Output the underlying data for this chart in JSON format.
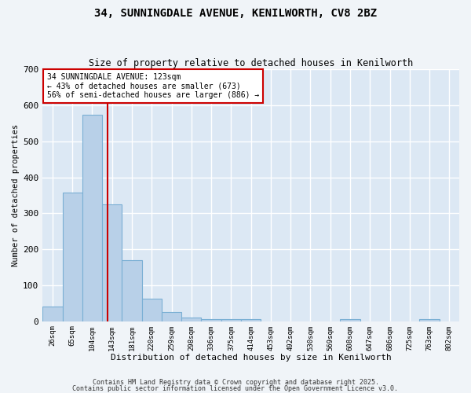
{
  "title1": "34, SUNNINGDALE AVENUE, KENILWORTH, CV8 2BZ",
  "title2": "Size of property relative to detached houses in Kenilworth",
  "xlabel": "Distribution of detached houses by size in Kenilworth",
  "ylabel": "Number of detached properties",
  "bin_labels": [
    "26sqm",
    "65sqm",
    "104sqm",
    "143sqm",
    "181sqm",
    "220sqm",
    "259sqm",
    "298sqm",
    "336sqm",
    "375sqm",
    "414sqm",
    "453sqm",
    "492sqm",
    "530sqm",
    "569sqm",
    "608sqm",
    "647sqm",
    "686sqm",
    "725sqm",
    "763sqm",
    "802sqm"
  ],
  "bar_heights": [
    40,
    358,
    573,
    325,
    170,
    63,
    25,
    10,
    5,
    5,
    5,
    0,
    0,
    0,
    0,
    5,
    0,
    0,
    0,
    5,
    0
  ],
  "bar_color": "#b8d0e8",
  "bar_edge_color": "#7aafd4",
  "background_color": "#dce8f4",
  "grid_color": "#ffffff",
  "fig_background": "#f0f4f8",
  "red_line_x": 2.77,
  "annotation_title": "34 SUNNINGDALE AVENUE: 123sqm",
  "annotation_line1": "← 43% of detached houses are smaller (673)",
  "annotation_line2": "56% of semi-detached houses are larger (886) →",
  "annotation_box_color": "#cc0000",
  "ylim": [
    0,
    700
  ],
  "yticks": [
    0,
    100,
    200,
    300,
    400,
    500,
    600,
    700
  ],
  "footnote1": "Contains HM Land Registry data © Crown copyright and database right 2025.",
  "footnote2": "Contains public sector information licensed under the Open Government Licence v3.0."
}
